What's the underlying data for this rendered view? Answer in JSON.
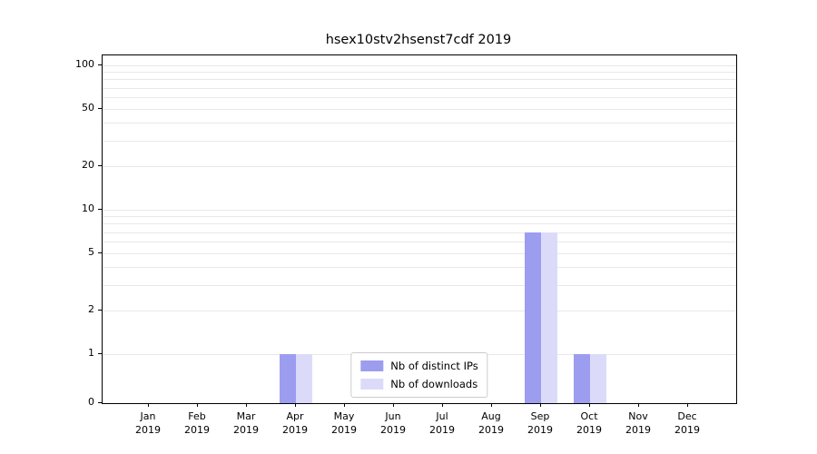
{
  "title": "hsex10stv2hsenst7cdf 2019",
  "chart_data": {
    "type": "bar",
    "title": "hsex10stv2hsenst7cdf 2019",
    "x_categories": [
      {
        "month": "Jan",
        "year": "2019"
      },
      {
        "month": "Feb",
        "year": "2019"
      },
      {
        "month": "Mar",
        "year": "2019"
      },
      {
        "month": "Apr",
        "year": "2019"
      },
      {
        "month": "May",
        "year": "2019"
      },
      {
        "month": "Jun",
        "year": "2019"
      },
      {
        "month": "Jul",
        "year": "2019"
      },
      {
        "month": "Aug",
        "year": "2019"
      },
      {
        "month": "Sep",
        "year": "2019"
      },
      {
        "month": "Oct",
        "year": "2019"
      },
      {
        "month": "Nov",
        "year": "2019"
      },
      {
        "month": "Dec",
        "year": "2019"
      }
    ],
    "series": [
      {
        "name": "Nb of distinct IPs",
        "color": "#9d9df0",
        "values": [
          0,
          0,
          0,
          1,
          0,
          0,
          0,
          0,
          7,
          1,
          0,
          0
        ]
      },
      {
        "name": "Nb of downloads",
        "color": "#dbdbf9",
        "values": [
          0,
          0,
          0,
          1,
          0,
          0,
          0,
          0,
          7,
          1,
          0,
          0
        ]
      }
    ],
    "y_scale": "symlog",
    "y_ticks_labeled": [
      0,
      1,
      2,
      5,
      10,
      20,
      50,
      100
    ],
    "y_gridlines": [
      1,
      2,
      3,
      4,
      5,
      6,
      7,
      8,
      9,
      10,
      20,
      30,
      40,
      50,
      60,
      70,
      80,
      90,
      100
    ],
    "ylim": [
      0,
      117
    ],
    "grid": true,
    "legend_position": "lower center"
  }
}
